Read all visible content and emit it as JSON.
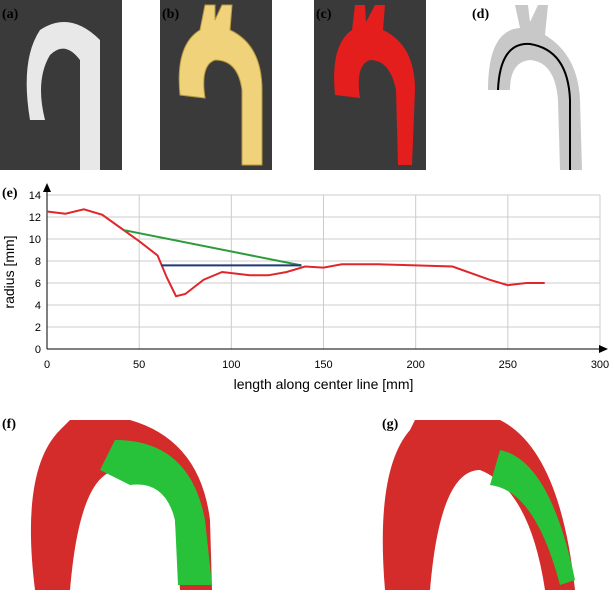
{
  "panel_labels": [
    "(a)",
    "(b)",
    "(c)",
    "(d)",
    "(e)",
    "(f)",
    "(g)"
  ],
  "chart_data": {
    "type": "line",
    "x_label": "length along center line [mm]",
    "y_label": "radius [mm]",
    "xlim": [
      0,
      300
    ],
    "xticks": [
      0,
      50,
      100,
      150,
      200,
      250,
      300
    ],
    "ylim": [
      0,
      14
    ],
    "yticks": [
      0,
      2,
      4,
      6,
      8,
      10,
      12,
      14
    ],
    "grid": true,
    "series": [
      {
        "color": "#e0262b",
        "x": [
          0,
          10,
          20,
          30,
          40,
          50,
          60,
          65,
          70,
          75,
          85,
          95,
          110,
          120,
          130,
          140,
          150,
          160,
          180,
          200,
          220,
          240,
          250,
          260,
          270
        ],
        "values": [
          12.5,
          12.3,
          12.7,
          12.2,
          11,
          9.8,
          8.5,
          6.5,
          4.8,
          5,
          6.3,
          7,
          6.7,
          6.7,
          7,
          7.5,
          7.4,
          7.7,
          7.7,
          7.6,
          7.5,
          6.3,
          5.8,
          6,
          6
        ]
      },
      {
        "color": "#2e9a3a",
        "x": [
          42,
          138
        ],
        "values": [
          10.8,
          7.6
        ]
      },
      {
        "color": "#1f3a7a",
        "x": [
          62,
          138
        ],
        "values": [
          7.6,
          7.6
        ]
      }
    ]
  }
}
